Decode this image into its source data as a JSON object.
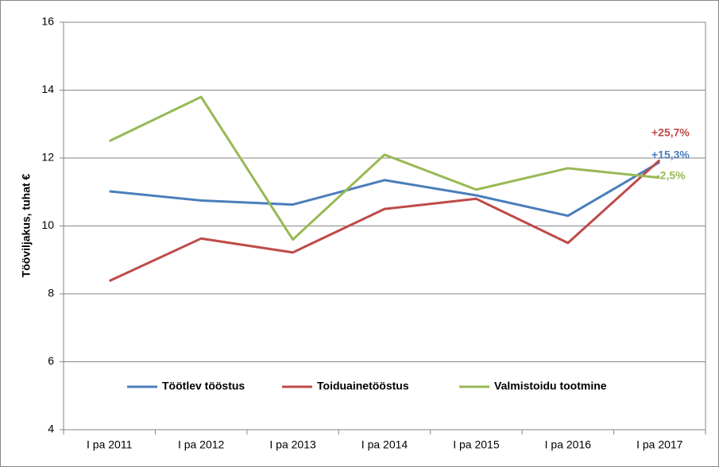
{
  "chart_data": {
    "type": "line",
    "y_label": "Tööviljakus, tuhat €",
    "categories": [
      "I pa 2011",
      "I pa 2012",
      "I pa 2013",
      "I pa 2014",
      "I pa 2015",
      "I pa 2016",
      "I pa 2017"
    ],
    "series": [
      {
        "name": "Töötlev tööstus",
        "color": "#4a7ebb",
        "values": [
          11.02,
          10.75,
          10.63,
          11.35,
          10.9,
          10.3,
          11.88
        ]
      },
      {
        "name": "Toiduainetööstus",
        "color": "#be4b48",
        "values": [
          8.38,
          9.63,
          9.22,
          10.5,
          10.8,
          9.5,
          11.94
        ]
      },
      {
        "name": "Valmistoidu tootmine",
        "color": "#98b954",
        "values": [
          12.5,
          13.8,
          9.6,
          12.1,
          11.07,
          11.7,
          11.42
        ]
      }
    ],
    "annotations": [
      {
        "text": "+25,7%",
        "color": "#be4b48"
      },
      {
        "text": "+15,3%",
        "color": "#4a7ebb"
      },
      {
        "text": "-2,5%",
        "color": "#98b954"
      }
    ],
    "ylim": [
      4,
      16
    ],
    "yticks": [
      4,
      6,
      8,
      10,
      12,
      14,
      16
    ],
    "grid": true,
    "legend": "bottom"
  }
}
